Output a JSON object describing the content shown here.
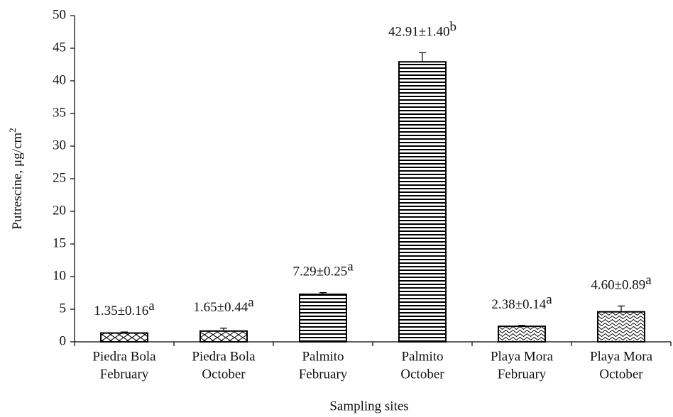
{
  "chart_data": {
    "type": "bar",
    "x_label": "Sampling sites",
    "y_label": "Putrescine, μg/cm",
    "y_label_sup": "2",
    "categories": [
      [
        "Piedra Bola",
        "February"
      ],
      [
        "Piedra Bola",
        "October"
      ],
      [
        "Palmito",
        "February"
      ],
      [
        "Palmito",
        "October"
      ],
      [
        "Playa Mora",
        "February"
      ],
      [
        "Playa Mora",
        "October"
      ]
    ],
    "values": [
      1.35,
      1.65,
      7.29,
      42.91,
      2.38,
      4.6
    ],
    "errors": [
      0.16,
      0.44,
      0.25,
      1.4,
      0.14,
      0.89
    ],
    "value_labels": [
      "1.35±0.16",
      "1.65±0.44",
      "7.29±0.25",
      "42.91±1.40",
      "2.38±0.14",
      "4.60±0.89"
    ],
    "letters": [
      "a",
      "a",
      "a",
      "b",
      "a",
      "a"
    ],
    "patterns": [
      "cross",
      "cross",
      "hlines",
      "hlines",
      "wave",
      "wave"
    ],
    "color": "#000000",
    "ylim": [
      0,
      50
    ],
    "yticks": [
      0,
      5,
      10,
      15,
      20,
      25,
      30,
      35,
      40,
      45,
      50
    ],
    "grid": false
  }
}
